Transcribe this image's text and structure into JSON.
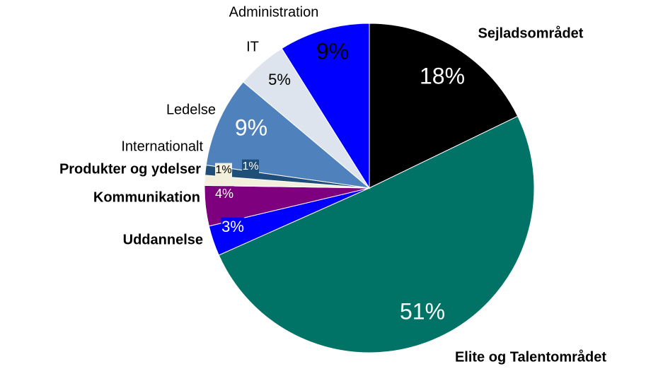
{
  "chart_data": {
    "type": "pie",
    "categories": [
      "Sejladsområdet",
      "Elite og Talentområdet",
      "Uddannelse",
      "Kommunikation",
      "Produkter og ydelser",
      "Internationalt",
      "Ledelse",
      "IT",
      "Administration"
    ],
    "values": [
      18,
      51,
      3,
      4,
      1,
      1,
      9,
      5,
      9
    ],
    "value_labels": [
      "18%",
      "51%",
      "3%",
      "4%",
      "1%",
      "1%",
      "9%",
      "5%",
      "9%"
    ],
    "colors": [
      "#000000",
      "#007366",
      "#0000ff",
      "#7f007f",
      "#f2efdc",
      "#1f4e79",
      "#4f81bd",
      "#dde4ee",
      "#0000ff"
    ]
  }
}
